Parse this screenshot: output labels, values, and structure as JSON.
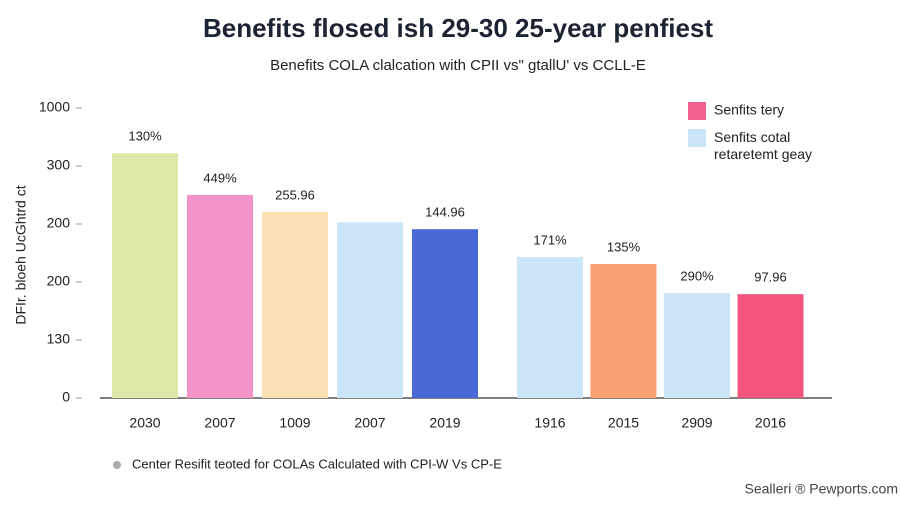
{
  "chart_data": {
    "type": "bar",
    "title": "Benefits flosed ish 29-30 25-year penfiest",
    "subtitle": "Benefits COLA clalcation with CPII vs\" gtallU' vs CCLL-E",
    "y_label": "DFIr. bloeh UcGhtrd ct",
    "categories": [
      "2030",
      "2007",
      "1009",
      "2007",
      "2019",
      "1916",
      "2015",
      "2909",
      "2016"
    ],
    "values": [
      422,
      350,
      321,
      303,
      291,
      243,
      231,
      181,
      179
    ],
    "colors": [
      "#dfe8a8",
      "#f294c8",
      "#fbe2b4",
      "#cbe6f8",
      "#4a68d6",
      "#cbe6f8",
      "#f9a070",
      "#cbe6f8",
      "#f2547e"
    ],
    "annotations": [
      "130%",
      "449%",
      "255.96",
      null,
      "144.96",
      "171%",
      "135%",
      "290%",
      "97.96"
    ],
    "ylim": [
      0,
      500
    ],
    "yticks": [
      0,
      {
        "value": 100,
        "label": "130"
      },
      {
        "value": 200,
        "label": "200"
      },
      {
        "value": 300,
        "label": "200"
      },
      {
        "value": 400,
        "label": "300"
      },
      {
        "value": 500,
        "label": "1000"
      }
    ],
    "legend": [
      {
        "label": "Senfits tery",
        "color": "#f2608e"
      },
      {
        "label": "Senfits cotal retaretemt geay",
        "color": "#cbe6f8"
      }
    ],
    "footnote": "Center Resifit teoted for COLAs Calculated with CPI-W Vs CP-E",
    "source": "Sealleri ® Pewports.com"
  }
}
